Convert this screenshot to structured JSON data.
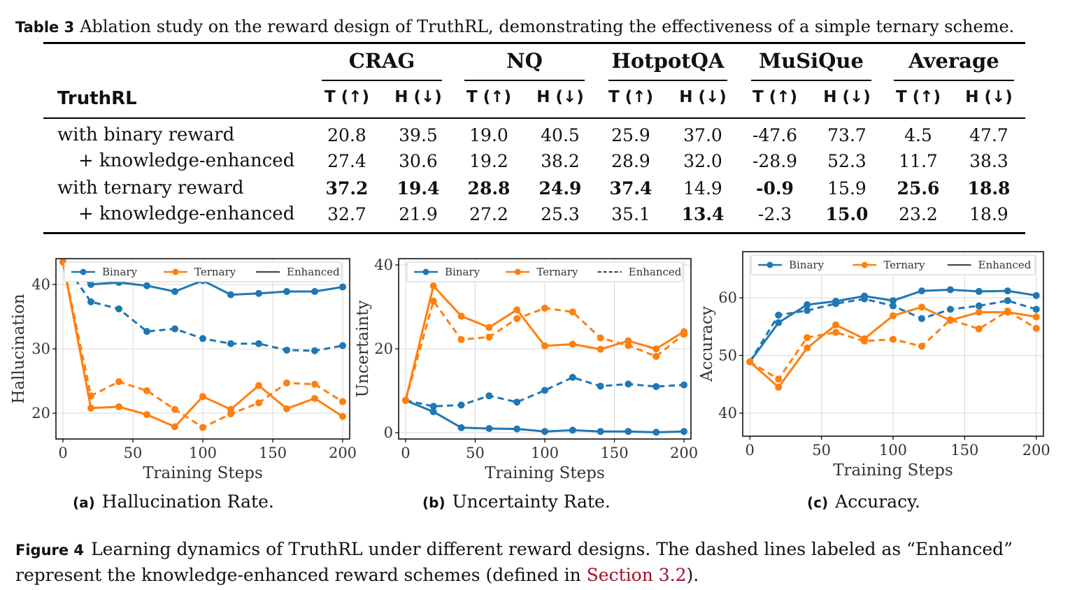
{
  "table": {
    "label": "Table 3",
    "caption": "Ablation study on the reward design of TruthRL, demonstrating the effectiveness of a simple ternary scheme.",
    "row_header": "TruthRL",
    "datasets": [
      "CRAG",
      "NQ",
      "HotpotQA",
      "MuSiQue",
      "Average"
    ],
    "metrics": [
      "T (↑)",
      "H (↓)"
    ],
    "rows": [
      {
        "label": "with binary reward",
        "values": [
          "20.8",
          "39.5",
          "19.0",
          "40.5",
          "25.9",
          "37.0",
          "-47.6",
          "73.7",
          "4.5",
          "47.7"
        ],
        "bold": [
          false,
          false,
          false,
          false,
          false,
          false,
          false,
          false,
          false,
          false
        ]
      },
      {
        "label": "+ knowledge-enhanced",
        "values": [
          "27.4",
          "30.6",
          "19.2",
          "38.2",
          "28.9",
          "32.0",
          "-28.9",
          "52.3",
          "11.7",
          "38.3"
        ],
        "bold": [
          false,
          false,
          false,
          false,
          false,
          false,
          false,
          false,
          false,
          false
        ]
      },
      {
        "label": "with ternary reward",
        "values": [
          "37.2",
          "19.4",
          "28.8",
          "24.9",
          "37.4",
          "14.9",
          "-0.9",
          "15.9",
          "25.6",
          "18.8"
        ],
        "bold": [
          true,
          true,
          true,
          true,
          true,
          false,
          true,
          false,
          true,
          true
        ]
      },
      {
        "label": "+ knowledge-enhanced",
        "values": [
          "32.7",
          "21.9",
          "27.2",
          "25.3",
          "35.1",
          "13.4",
          "-2.3",
          "15.0",
          "23.2",
          "18.9"
        ],
        "bold": [
          false,
          false,
          false,
          false,
          false,
          true,
          false,
          true,
          false,
          false
        ]
      }
    ]
  },
  "colors": {
    "binary": "#1f77b4",
    "ternary": "#ff7f0e",
    "grid": "#d8d8d8"
  },
  "chart_data": [
    {
      "type": "line",
      "tag": "(a)",
      "caption": "Hallucination Rate.",
      "xlabel": "Training Steps",
      "ylabel": "Hallucination",
      "xlim": [
        -5,
        205
      ],
      "ylim": [
        16,
        44
      ],
      "xticks": [
        0,
        50,
        100,
        150,
        200
      ],
      "yticks": [
        20,
        30,
        40
      ],
      "legend": [
        "Binary",
        "Ternary",
        "Enhanced"
      ],
      "legend_enhanced_style": "solid",
      "x": [
        0,
        20,
        40,
        60,
        80,
        100,
        120,
        140,
        160,
        180,
        200
      ],
      "series": [
        {
          "name": "Binary",
          "dashed": false,
          "values": [
            43.5,
            40.0,
            40.3,
            39.8,
            38.9,
            40.6,
            38.4,
            38.6,
            38.9,
            38.9,
            39.6
          ]
        },
        {
          "name": "Binary Enhanced",
          "dashed": true,
          "values": [
            43.5,
            37.3,
            36.2,
            32.7,
            33.1,
            31.6,
            30.8,
            30.8,
            29.8,
            29.7,
            30.5
          ]
        },
        {
          "name": "Ternary",
          "dashed": false,
          "values": [
            43.5,
            20.8,
            21.0,
            19.8,
            17.9,
            22.6,
            20.6,
            24.3,
            20.7,
            22.3,
            19.5
          ]
        },
        {
          "name": "Ternary Enhanced",
          "dashed": true,
          "values": [
            43.5,
            22.7,
            24.9,
            23.5,
            20.6,
            17.8,
            19.9,
            21.6,
            24.7,
            24.5,
            21.8
          ]
        }
      ]
    },
    {
      "type": "line",
      "tag": "(b)",
      "caption": "Uncertainty Rate.",
      "xlabel": "Training Steps",
      "ylabel": "Uncertainty",
      "xlim": [
        -5,
        205
      ],
      "ylim": [
        -1.5,
        41.5
      ],
      "xticks": [
        0,
        50,
        100,
        150,
        200
      ],
      "yticks": [
        0,
        20,
        40
      ],
      "legend": [
        "Binary",
        "Ternary",
        "Enhanced"
      ],
      "legend_enhanced_style": "dashed",
      "x": [
        0,
        20,
        40,
        60,
        80,
        100,
        120,
        140,
        160,
        180,
        200
      ],
      "series": [
        {
          "name": "Binary",
          "dashed": false,
          "values": [
            7.7,
            5.0,
            1.2,
            1.0,
            0.9,
            0.3,
            0.6,
            0.3,
            0.3,
            0.1,
            0.3
          ]
        },
        {
          "name": "Binary Enhanced",
          "dashed": true,
          "values": [
            7.7,
            6.3,
            6.6,
            8.8,
            7.3,
            10.1,
            13.2,
            11.1,
            11.6,
            11.0,
            11.4
          ]
        },
        {
          "name": "Ternary",
          "dashed": false,
          "values": [
            7.7,
            35.0,
            27.8,
            25.1,
            29.3,
            20.7,
            21.1,
            19.9,
            21.9,
            20.0,
            24.1
          ]
        },
        {
          "name": "Ternary Enhanced",
          "dashed": true,
          "values": [
            7.7,
            31.4,
            22.2,
            22.8,
            27.2,
            29.7,
            28.8,
            22.6,
            20.8,
            18.2,
            23.5
          ]
        }
      ]
    },
    {
      "type": "line",
      "tag": "(c)",
      "caption": "Accuracy.",
      "xlabel": "Training Steps",
      "ylabel": "Accuracy",
      "xlim": [
        -5,
        205
      ],
      "ylim": [
        36,
        68
      ],
      "xticks": [
        0,
        50,
        100,
        150,
        200
      ],
      "yticks": [
        40,
        50,
        60
      ],
      "legend": [
        "Binary",
        "Ternary",
        "Enhanced"
      ],
      "legend_enhanced_style": "solid",
      "x": [
        0,
        20,
        40,
        60,
        80,
        100,
        120,
        140,
        160,
        180,
        200
      ],
      "series": [
        {
          "name": "Binary",
          "dashed": false,
          "values": [
            48.9,
            55.7,
            58.8,
            59.4,
            60.3,
            59.5,
            61.2,
            61.4,
            61.1,
            61.2,
            60.4
          ]
        },
        {
          "name": "Binary Enhanced",
          "dashed": true,
          "values": [
            48.9,
            57.0,
            57.8,
            59.0,
            59.8,
            58.6,
            56.4,
            58.0,
            58.6,
            59.5,
            58.0
          ]
        },
        {
          "name": "Ternary",
          "dashed": false,
          "values": [
            48.9,
            44.5,
            51.3,
            55.3,
            52.9,
            56.9,
            58.4,
            56.1,
            57.5,
            57.5,
            56.7
          ]
        },
        {
          "name": "Ternary Enhanced",
          "dashed": true,
          "values": [
            48.9,
            45.9,
            53.1,
            54.0,
            52.5,
            52.8,
            51.6,
            56.2,
            54.6,
            57.7,
            54.7
          ]
        }
      ]
    }
  ],
  "figure": {
    "label": "Figure 4",
    "caption_pre": "Learning dynamics of TruthRL under different reward designs.  The dashed lines labeled as “Enhanced” represent the knowledge-enhanced reward schemes (defined in ",
    "link": "Section 3.2",
    "caption_post": ")."
  }
}
